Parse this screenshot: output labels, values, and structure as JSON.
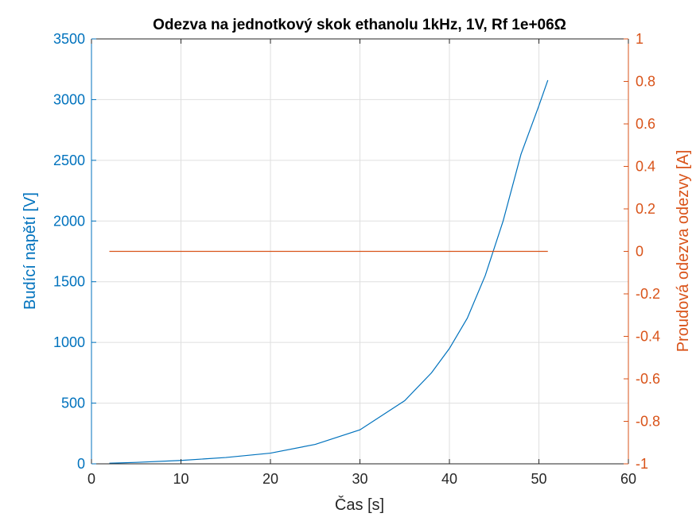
{
  "chart_data": {
    "type": "line",
    "title": "Odezva na jednotkový skok ethanolu 1kHz, 1V, Rf 1e+06Ω",
    "xlabel": "Čas [s]",
    "ylabel_left": "Budící napětí [V]",
    "ylabel_right": "Proudová odezva odezvy [A]",
    "xlim": [
      0,
      60
    ],
    "ylim_left": [
      0,
      3500
    ],
    "ylim_right": [
      -1,
      1
    ],
    "x_ticks": [
      "0",
      "10",
      "20",
      "30",
      "40",
      "50",
      "60"
    ],
    "y_left_ticks": [
      "0",
      "500",
      "1000",
      "1500",
      "2000",
      "2500",
      "3000",
      "3500"
    ],
    "y_right_ticks": [
      "-1",
      "-0.8",
      "-0.6",
      "-0.4",
      "-0.2",
      "0",
      "0.2",
      "0.4",
      "0.6",
      "0.8",
      "1"
    ],
    "grid": true,
    "colors": {
      "left": "#0072bd",
      "right": "#d95319",
      "axis": "#262626"
    },
    "series": [
      {
        "axis": "left",
        "color": "#0072bd",
        "x": [
          2,
          5,
          10,
          15,
          20,
          25,
          30,
          35,
          38,
          40,
          42,
          44,
          46,
          48,
          50,
          51
        ],
        "values": [
          5,
          12,
          28,
          52,
          88,
          160,
          280,
          520,
          750,
          950,
          1200,
          1550,
          2000,
          2550,
          2950,
          3160
        ]
      },
      {
        "axis": "right",
        "color": "#d95319",
        "x": [
          2,
          51
        ],
        "values": [
          0,
          0
        ]
      }
    ]
  }
}
